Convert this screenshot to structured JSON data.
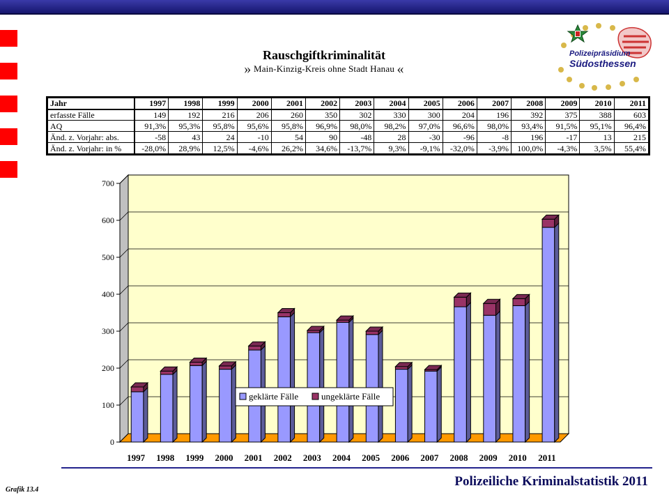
{
  "title": "Rauschgiftkriminalität",
  "subtitle_open": "»",
  "subtitle": "Main-Kinzig-Kreis ohne Stadt Hanau",
  "subtitle_close": "«",
  "logo": {
    "line1": "Polizeipräsidium",
    "line2": "Südosthessen"
  },
  "table": {
    "header_label": "Jahr",
    "years": [
      "1997",
      "1998",
      "1999",
      "2000",
      "2001",
      "2002",
      "2003",
      "2004",
      "2005",
      "2006",
      "2007",
      "2008",
      "2009",
      "2010",
      "2011"
    ],
    "rows": [
      {
        "label": "erfasste Fälle",
        "values": [
          "149",
          "192",
          "216",
          "206",
          "260",
          "350",
          "302",
          "330",
          "300",
          "204",
          "196",
          "392",
          "375",
          "388",
          "603"
        ]
      },
      {
        "label": "AQ",
        "values": [
          "91,3%",
          "95,3%",
          "95,8%",
          "95,6%",
          "95,8%",
          "96,9%",
          "98,0%",
          "98,2%",
          "97,0%",
          "96,6%",
          "98,0%",
          "93,4%",
          "91,5%",
          "95,1%",
          "96,4%"
        ]
      },
      {
        "label": "Änd. z. Vorjahr: abs.",
        "values": [
          "-58",
          "43",
          "24",
          "-10",
          "54",
          "90",
          "-48",
          "28",
          "-30",
          "-96",
          "-8",
          "196",
          "-17",
          "13",
          "215"
        ]
      },
      {
        "label": "Änd. z. Vorjahr: in %",
        "values": [
          "-28,0%",
          "28,9%",
          "12,5%",
          "-4,6%",
          "26,2%",
          "34,6%",
          "-13,7%",
          "9,3%",
          "-9,1%",
          "-32,0%",
          "-3,9%",
          "100,0%",
          "-4,3%",
          "3,5%",
          "55,4%"
        ]
      }
    ]
  },
  "chart_data": {
    "type": "bar",
    "stacked": true,
    "categories": [
      "1997",
      "1998",
      "1999",
      "2000",
      "2001",
      "2002",
      "2003",
      "2004",
      "2005",
      "2006",
      "2007",
      "2008",
      "2009",
      "2010",
      "2011"
    ],
    "series": [
      {
        "name": "geklärte Fälle",
        "color": "#9999ff",
        "values": [
          136,
          183,
          207,
          197,
          249,
          339,
          296,
          324,
          291,
          197,
          192,
          366,
          343,
          369,
          581
        ]
      },
      {
        "name": "ungeklärte Fälle",
        "color": "#993366",
        "values": [
          13,
          9,
          9,
          9,
          11,
          11,
          6,
          6,
          9,
          7,
          4,
          26,
          32,
          19,
          22
        ]
      }
    ],
    "ylim": [
      0,
      700
    ],
    "yticks": [
      "0",
      "100",
      "200",
      "300",
      "400",
      "500",
      "600",
      "700"
    ],
    "grid": true,
    "legend_position": "bottom-center",
    "plot_background": "#ffffcc",
    "floor_color": "#ff9900"
  },
  "footer": "Polizeiliche Kriminalstatistik 2011",
  "caption": "Grafik 13.4"
}
